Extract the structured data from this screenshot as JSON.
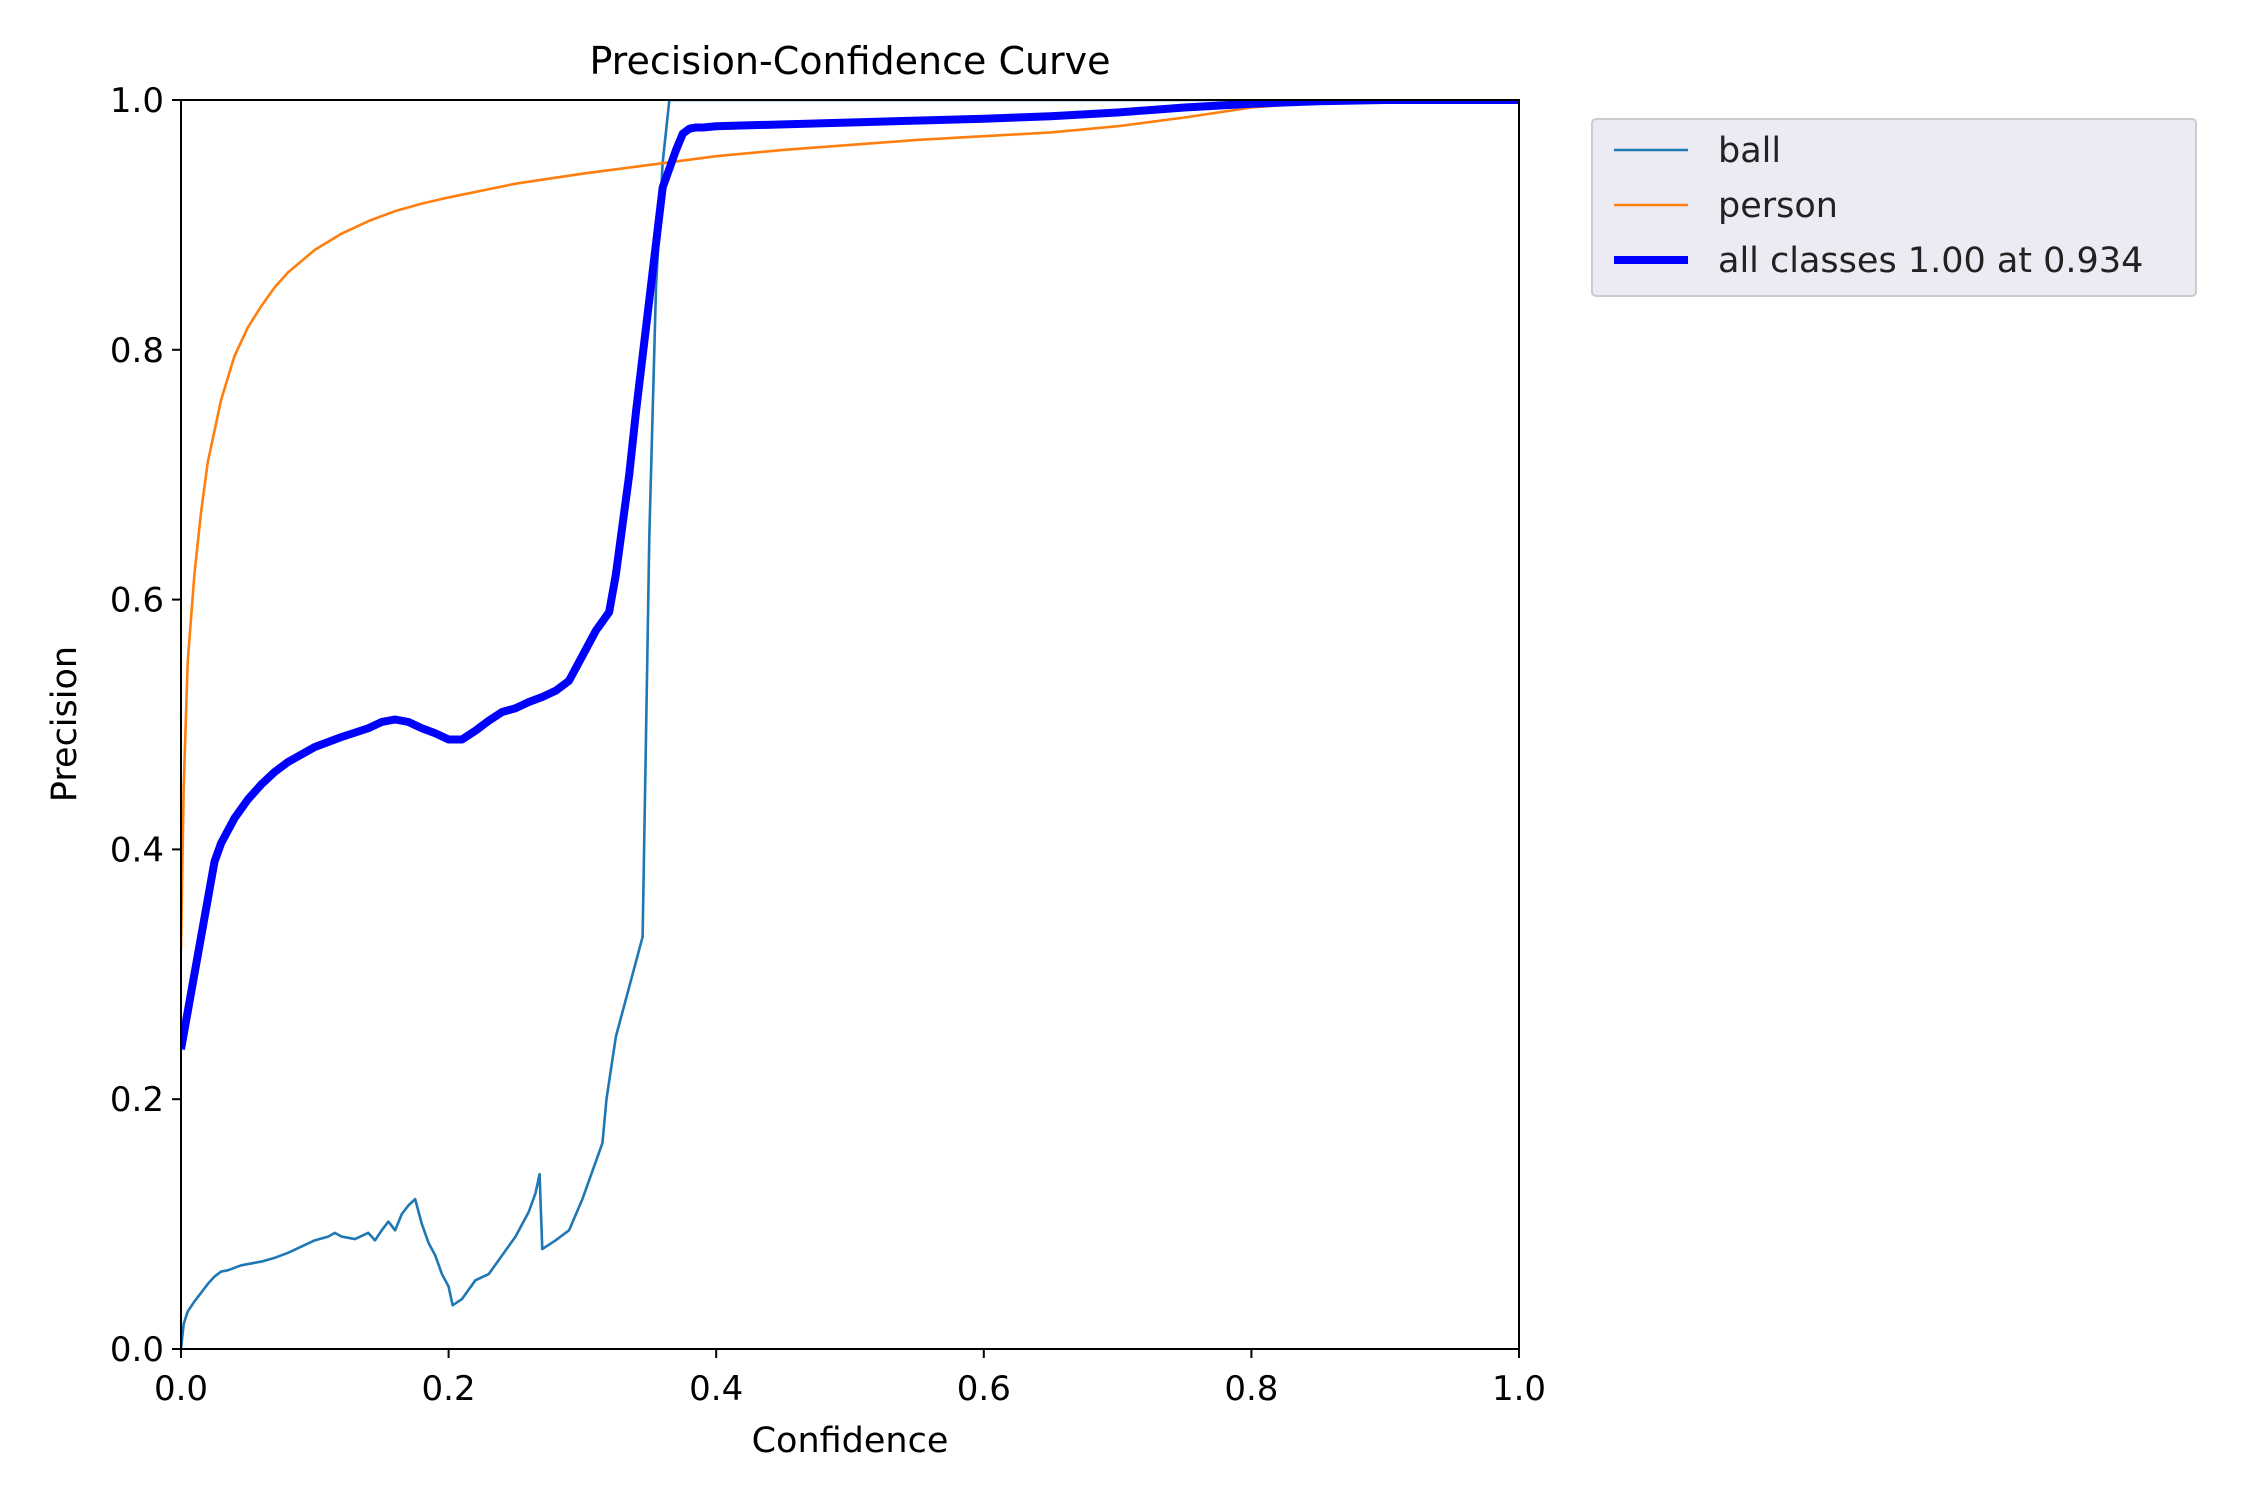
{
  "chart_data": {
    "type": "line",
    "title": "Precision-Confidence Curve",
    "xlabel": "Confidence",
    "ylabel": "Precision",
    "xlim": [
      0,
      1
    ],
    "ylim": [
      0,
      1
    ],
    "xticks": [
      0.0,
      0.2,
      0.4,
      0.6,
      0.8,
      1.0
    ],
    "yticks": [
      0.0,
      0.2,
      0.4,
      0.6,
      0.8,
      1.0
    ],
    "xtick_labels": [
      "0.0",
      "0.2",
      "0.4",
      "0.6",
      "0.8",
      "1.0"
    ],
    "ytick_labels": [
      "0.0",
      "0.2",
      "0.4",
      "0.6",
      "0.8",
      "1.0"
    ],
    "grid": false,
    "legend_position": "outside upper right",
    "series": [
      {
        "name": "ball",
        "color": "#1f77b4",
        "emphasis": "normal",
        "x": [
          0.0,
          0.002,
          0.005,
          0.01,
          0.015,
          0.02,
          0.025,
          0.03,
          0.035,
          0.04,
          0.045,
          0.05,
          0.06,
          0.07,
          0.08,
          0.09,
          0.1,
          0.11,
          0.115,
          0.12,
          0.13,
          0.14,
          0.145,
          0.15,
          0.155,
          0.16,
          0.165,
          0.17,
          0.175,
          0.18,
          0.185,
          0.19,
          0.195,
          0.2,
          0.203,
          0.21,
          0.22,
          0.23,
          0.24,
          0.25,
          0.26,
          0.265,
          0.268,
          0.27,
          0.28,
          0.29,
          0.3,
          0.31,
          0.315,
          0.318,
          0.325,
          0.335,
          0.345,
          0.348,
          0.35,
          0.355,
          0.36,
          0.365,
          0.37,
          0.38,
          0.4,
          0.5,
          0.6,
          0.7,
          0.8,
          0.9,
          1.0
        ],
        "y": [
          0.0,
          0.02,
          0.03,
          0.038,
          0.045,
          0.052,
          0.058,
          0.062,
          0.063,
          0.065,
          0.067,
          0.068,
          0.07,
          0.073,
          0.077,
          0.082,
          0.087,
          0.09,
          0.093,
          0.09,
          0.088,
          0.093,
          0.087,
          0.095,
          0.102,
          0.095,
          0.108,
          0.115,
          0.12,
          0.1,
          0.085,
          0.075,
          0.06,
          0.05,
          0.035,
          0.04,
          0.055,
          0.06,
          0.075,
          0.09,
          0.11,
          0.125,
          0.14,
          0.08,
          0.087,
          0.095,
          0.12,
          0.15,
          0.165,
          0.2,
          0.25,
          0.29,
          0.33,
          0.52,
          0.65,
          0.85,
          0.95,
          1.0,
          1.0,
          1.0,
          1.0,
          1.0,
          1.0,
          1.0,
          1.0,
          1.0,
          1.0
        ]
      },
      {
        "name": "person",
        "color": "#ff7f0e",
        "emphasis": "normal",
        "x": [
          0.0,
          0.002,
          0.005,
          0.01,
          0.015,
          0.02,
          0.03,
          0.04,
          0.05,
          0.06,
          0.07,
          0.08,
          0.1,
          0.12,
          0.14,
          0.16,
          0.18,
          0.2,
          0.25,
          0.3,
          0.35,
          0.4,
          0.45,
          0.5,
          0.55,
          0.6,
          0.65,
          0.7,
          0.75,
          0.8,
          0.85,
          0.9,
          0.95,
          1.0
        ],
        "y": [
          0.32,
          0.45,
          0.55,
          0.62,
          0.67,
          0.71,
          0.76,
          0.795,
          0.818,
          0.835,
          0.85,
          0.862,
          0.88,
          0.893,
          0.903,
          0.911,
          0.917,
          0.922,
          0.933,
          0.941,
          0.948,
          0.955,
          0.96,
          0.964,
          0.968,
          0.971,
          0.974,
          0.979,
          0.986,
          0.994,
          0.998,
          1.0,
          1.0,
          1.0
        ]
      },
      {
        "name": "all classes 1.00 at 0.934",
        "color": "#0000ff",
        "emphasis": "bold",
        "x": [
          0.0,
          0.01,
          0.02,
          0.025,
          0.03,
          0.04,
          0.05,
          0.06,
          0.07,
          0.08,
          0.1,
          0.12,
          0.14,
          0.15,
          0.16,
          0.17,
          0.18,
          0.19,
          0.2,
          0.21,
          0.22,
          0.23,
          0.24,
          0.25,
          0.26,
          0.27,
          0.28,
          0.29,
          0.3,
          0.31,
          0.32,
          0.325,
          0.33,
          0.335,
          0.34,
          0.35,
          0.36,
          0.37,
          0.375,
          0.38,
          0.385,
          0.39,
          0.4,
          0.5,
          0.6,
          0.65,
          0.7,
          0.75,
          0.8,
          0.85,
          0.9,
          0.95,
          1.0
        ],
        "y": [
          0.24,
          0.3,
          0.36,
          0.39,
          0.405,
          0.425,
          0.44,
          0.452,
          0.462,
          0.47,
          0.482,
          0.49,
          0.497,
          0.502,
          0.504,
          0.502,
          0.497,
          0.493,
          0.488,
          0.488,
          0.495,
          0.503,
          0.51,
          0.513,
          0.518,
          0.522,
          0.527,
          0.535,
          0.555,
          0.575,
          0.59,
          0.62,
          0.66,
          0.7,
          0.75,
          0.84,
          0.93,
          0.96,
          0.973,
          0.977,
          0.978,
          0.978,
          0.979,
          0.982,
          0.985,
          0.987,
          0.99,
          0.994,
          0.997,
          0.999,
          1.0,
          1.0,
          1.0
        ]
      }
    ]
  }
}
